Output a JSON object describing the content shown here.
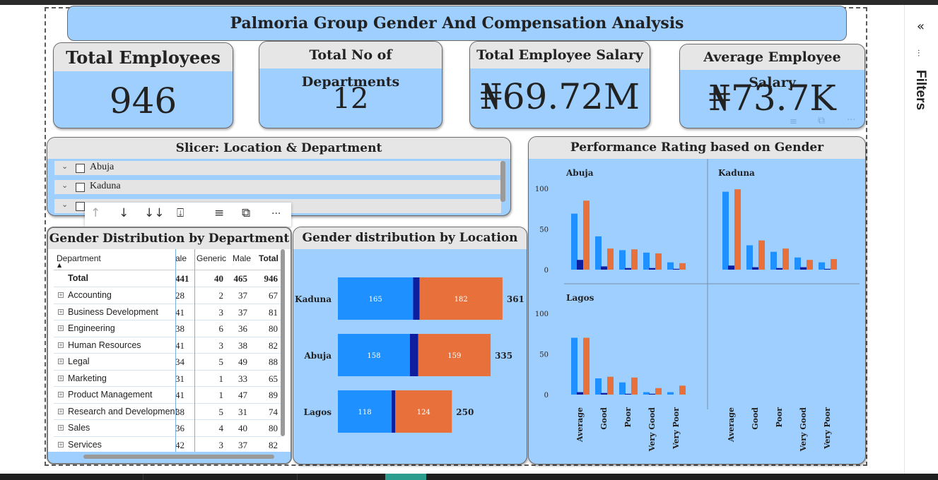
{
  "dashboard": {
    "title": "Palmoria Group Gender And Compensation Analysis"
  },
  "kpis": {
    "total_employees": {
      "label": "Total Employees",
      "value": "946"
    },
    "total_departments": {
      "label": "Total No of Departments",
      "value": "12"
    },
    "total_salary": {
      "label": "Total Employee Salary",
      "value": "₦69.72M"
    },
    "avg_salary": {
      "label": "Average Employee Salary",
      "value": "₦73.7K"
    }
  },
  "slicer": {
    "title": "Slicer: Location & Department",
    "items": [
      {
        "label": "Abuja"
      },
      {
        "label": "Kaduna"
      }
    ]
  },
  "visual_toolbar": {
    "icons": [
      "arrow-up-icon",
      "arrow-down-icon",
      "double-arrow-down-icon",
      "expand-hierarchy-icon",
      "filter-icon",
      "focus-mode-icon",
      "more-options-icon"
    ]
  },
  "table": {
    "title": "Gender Distribution by Department",
    "columns": [
      "Department",
      "ale",
      "Generic",
      "Male",
      "Total"
    ],
    "total_row": {
      "dept": "Total",
      "female": "441",
      "generic": "40",
      "male": "465",
      "total": "946"
    },
    "rows": [
      {
        "dept": "Accounting",
        "female": "28",
        "generic": "2",
        "male": "37",
        "total": "67"
      },
      {
        "dept": "Business Development",
        "female": "41",
        "generic": "3",
        "male": "37",
        "total": "81"
      },
      {
        "dept": "Engineering",
        "female": "38",
        "generic": "6",
        "male": "36",
        "total": "80"
      },
      {
        "dept": "Human Resources",
        "female": "41",
        "generic": "3",
        "male": "38",
        "total": "82"
      },
      {
        "dept": "Legal",
        "female": "34",
        "generic": "5",
        "male": "49",
        "total": "88"
      },
      {
        "dept": "Marketing",
        "female": "31",
        "generic": "1",
        "male": "33",
        "total": "65"
      },
      {
        "dept": "Product Management",
        "female": "41",
        "generic": "1",
        "male": "47",
        "total": "89"
      },
      {
        "dept": "Research and Development",
        "female": "38",
        "generic": "5",
        "male": "31",
        "total": "74"
      },
      {
        "dept": "Sales",
        "female": "36",
        "generic": "4",
        "male": "40",
        "total": "80"
      },
      {
        "dept": "Services",
        "female": "42",
        "generic": "3",
        "male": "37",
        "total": "82"
      }
    ]
  },
  "filters_pane": {
    "label": "Filters"
  },
  "colors": {
    "female": "#1e90ff",
    "generic": "#0d1f9e",
    "male": "#e8703a",
    "card_bg": "#9fcfff",
    "head_bg": "#e6e6e6"
  },
  "chart_data": [
    {
      "type": "bar",
      "orientation": "horizontal",
      "stacked": true,
      "title": "Gender distribution by Location",
      "categories": [
        "Kaduna",
        "Abuja",
        "Lagos"
      ],
      "series": [
        {
          "values": [
            165,
            158,
            118
          ],
          "color": "#1e90ff"
        },
        {
          "values": [
            14,
            18,
            8
          ],
          "color": "#0d1f9e"
        },
        {
          "values": [
            182,
            159,
            124
          ],
          "color": "#e8703a"
        }
      ],
      "totals": [
        361,
        335,
        250
      ],
      "data_labels": true
    },
    {
      "type": "bar",
      "title": "Performance Rating based on Gender",
      "small_multiples": true,
      "panels": [
        "Abuja",
        "Kaduna",
        "Lagos"
      ],
      "categories": [
        "Average",
        "Good",
        "Poor",
        "Very Good",
        "Very Poor"
      ],
      "y_ticks": [
        0,
        50,
        100
      ],
      "ylim": [
        0,
        100
      ],
      "panel_data": {
        "Abuja": {
          "female": [
            69,
            41,
            24,
            21,
            9
          ],
          "generic": [
            12,
            4,
            2,
            2,
            1
          ],
          "male": [
            85,
            26,
            25,
            20,
            8
          ]
        },
        "Kaduna": {
          "female": [
            96,
            30,
            22,
            15,
            9
          ],
          "generic": [
            5,
            3,
            2,
            3,
            1
          ],
          "male": [
            99,
            36,
            26,
            12,
            13
          ]
        },
        "Lagos": {
          "female": [
            70,
            20,
            15,
            3,
            3
          ],
          "generic": [
            3,
            2,
            1,
            1,
            0
          ],
          "male": [
            70,
            22,
            21,
            8,
            11
          ]
        }
      }
    }
  ]
}
